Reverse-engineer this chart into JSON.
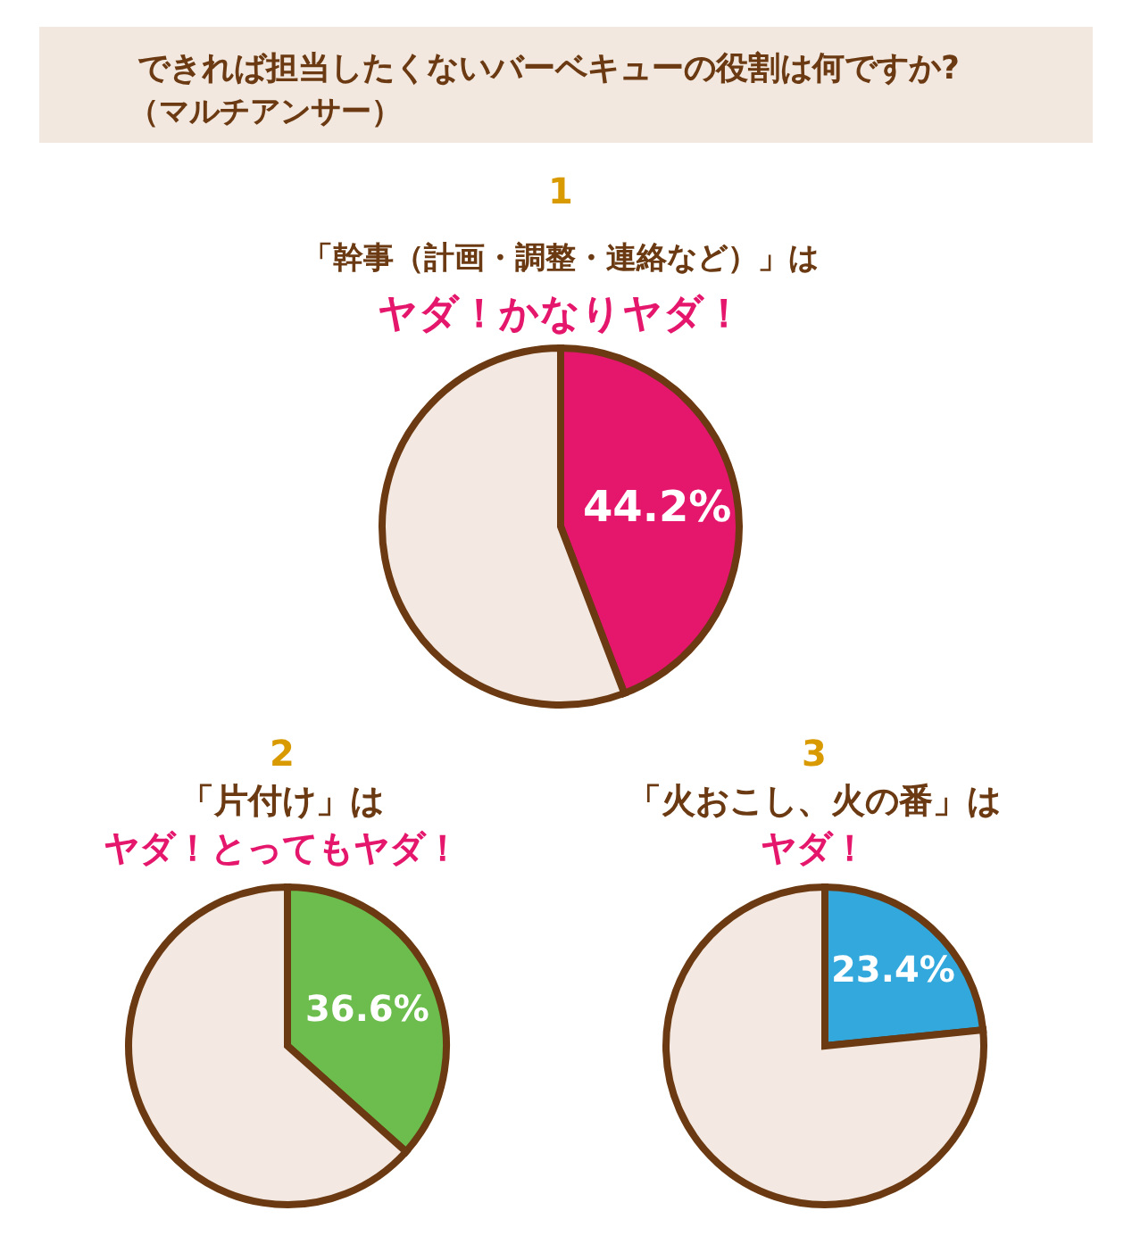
{
  "chart_data": [
    {
      "type": "other",
      "title": "できれば担当したくないバーベキューの役割は何ですか?",
      "subtitle": "（マルチアンサー）"
    },
    {
      "type": "pie",
      "title": "「幹事（計画・調整・連絡など）」は",
      "subtitle": "ヤダ！かなりヤダ！",
      "annotations": [
        "1"
      ],
      "categories": [
        null,
        null
      ],
      "values": [
        44.2,
        55.8
      ],
      "colors": [
        "#e5176d",
        "#f3e9e2"
      ],
      "value_labels": [
        "44.2%",
        null
      ]
    },
    {
      "type": "pie",
      "title": "「片付け」は",
      "subtitle": "ヤダ！とってもヤダ！",
      "annotations": [
        "2"
      ],
      "categories": [
        null,
        null
      ],
      "values": [
        36.6,
        63.4
      ],
      "colors": [
        "#6cbd4e",
        "#f3e9e2"
      ],
      "value_labels": [
        "36.6%",
        null
      ]
    },
    {
      "type": "pie",
      "title": "「火おこし、火の番」は",
      "subtitle": "ヤダ！",
      "annotations": [
        "3"
      ],
      "categories": [
        null,
        null
      ],
      "values": [
        23.4,
        76.6
      ],
      "colors": [
        "#33a8dc",
        "#f3e9e2"
      ],
      "value_labels": [
        "23.4%",
        null
      ]
    }
  ]
}
